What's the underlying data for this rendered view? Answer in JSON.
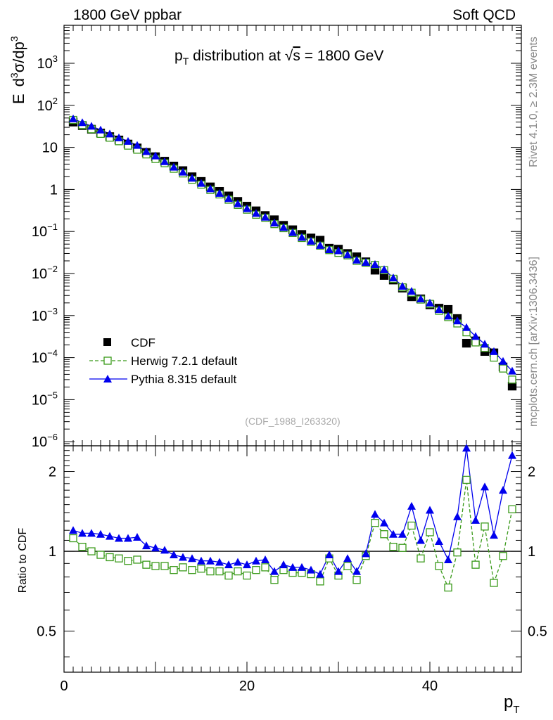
{
  "header": {
    "left": "1800 GeV ppbar",
    "right": "Soft QCD"
  },
  "side_labels": {
    "top": "Rivet 4.1.0, ≥ 2.3M events",
    "bottom": "mcplots.cern.ch [arXiv:1306.3436]"
  },
  "watermark": "(CDF_1988_I263320)",
  "colors": {
    "cdf": "#000000",
    "herwig": "#3a9a1a",
    "pythia": "#0000ee"
  },
  "chart_data": [
    {
      "type": "scatter",
      "name": "main",
      "title": "p_T distribution at √s = 1800 GeV",
      "title_parts": {
        "p": "p",
        "T": "T",
        "rest": " distribution at ",
        "sqrt": "√",
        "s": "s",
        "eq": " = 1800 GeV"
      },
      "ylabel": "E d³σ/dp³",
      "ylabel_parts": {
        "E": "E",
        "d": "d",
        "three": "3",
        "sigma": "σ/dp",
        "three2": "3"
      },
      "yscale": "log",
      "ylim": [
        8e-07,
        8000
      ],
      "xlim": [
        0,
        50
      ],
      "yticks": [
        {
          "v": 1000,
          "b": "10",
          "e": "3"
        },
        {
          "v": 100,
          "b": "10",
          "e": "2"
        },
        {
          "v": 10,
          "b": "10",
          "e": ""
        },
        {
          "v": 1,
          "b": "1",
          "e": ""
        },
        {
          "v": 0.1,
          "b": "10",
          "e": "−1"
        },
        {
          "v": 0.01,
          "b": "10",
          "e": "−2"
        },
        {
          "v": 0.001,
          "b": "10",
          "e": "−3"
        },
        {
          "v": 0.0001,
          "b": "10",
          "e": "−4"
        },
        {
          "v": 1e-05,
          "b": "10",
          "e": "−5"
        },
        {
          "v": 1e-06,
          "b": "10",
          "e": "−6"
        }
      ],
      "legend": {
        "position": "bottom-left",
        "entries": [
          {
            "key": "cdf",
            "label": "CDF"
          },
          {
            "key": "herwig",
            "label": "Herwig 7.2.1 default"
          },
          {
            "key": "pythia",
            "label": "Pythia 8.315 default"
          }
        ]
      },
      "x": [
        1,
        2,
        3,
        4,
        5,
        6,
        7,
        8,
        9,
        10,
        11,
        12,
        13,
        14,
        15,
        16,
        17,
        18,
        19,
        20,
        21,
        22,
        23,
        24,
        25,
        26,
        27,
        28,
        29,
        30,
        31,
        32,
        33,
        34,
        35,
        36,
        37,
        38,
        39,
        40,
        41,
        42,
        43,
        44,
        45,
        46,
        47,
        48,
        49
      ],
      "series": [
        {
          "name": "CDF",
          "key": "cdf",
          "values": [
            40,
            33,
            27,
            22,
            18,
            15,
            12,
            9.7,
            7.6,
            6.0,
            4.7,
            3.6,
            2.8,
            2.0,
            1.55,
            1.15,
            0.9,
            0.7,
            0.52,
            0.4,
            0.31,
            0.24,
            0.19,
            0.14,
            0.11,
            0.085,
            0.07,
            0.062,
            0.04,
            0.038,
            0.03,
            0.025,
            0.019,
            0.012,
            0.009,
            0.007,
            0.0045,
            0.0028,
            0.0025,
            0.0018,
            0.0015,
            0.0014,
            0.00085,
            0.00022,
            0.00025,
            0.00014,
            0.00013,
            6e-05,
            2.1e-05
          ]
        },
        {
          "name": "Herwig 7.2.1 default",
          "key": "herwig",
          "values": [
            45,
            34,
            27,
            21,
            17,
            14,
            11,
            8.8,
            6.8,
            5.3,
            4.2,
            3.1,
            2.4,
            1.7,
            1.3,
            0.97,
            0.76,
            0.57,
            0.43,
            0.33,
            0.25,
            0.21,
            0.15,
            0.12,
            0.092,
            0.07,
            0.057,
            0.046,
            0.036,
            0.031,
            0.027,
            0.02,
            0.018,
            0.016,
            0.012,
            0.0075,
            0.0047,
            0.0035,
            0.0024,
            0.0019,
            0.0013,
            0.00092,
            0.00065,
            0.0004,
            0.00023,
            0.00017,
            0.0001,
            5.5e-05,
            3e-05
          ]
        },
        {
          "name": "Pythia 8.315 default",
          "key": "pythia",
          "values": [
            48,
            39,
            32,
            26,
            21,
            17,
            14,
            11.2,
            8.0,
            6.3,
            4.6,
            3.4,
            2.6,
            1.85,
            1.4,
            1.04,
            0.81,
            0.61,
            0.46,
            0.35,
            0.27,
            0.22,
            0.16,
            0.125,
            0.095,
            0.073,
            0.059,
            0.047,
            0.037,
            0.035,
            0.028,
            0.021,
            0.0185,
            0.0165,
            0.0125,
            0.0079,
            0.005,
            0.0038,
            0.0025,
            0.002,
            0.0014,
            0.00098,
            0.00075,
            0.00052,
            0.00032,
            0.00021,
            0.00014,
            8.2e-05,
            4.8e-05
          ]
        }
      ]
    },
    {
      "type": "scatter",
      "name": "ratio",
      "ylabel": "Ratio to CDF",
      "xlabel": "p_T",
      "xlabel_parts": {
        "p": "p",
        "T": "T"
      },
      "yscale": "log",
      "ylim": [
        0.35,
        2.5
      ],
      "xlim": [
        0,
        50
      ],
      "reference": 1,
      "yticks": [
        {
          "v": 0.5,
          "label": "0.5"
        },
        {
          "v": 1,
          "label": "1"
        },
        {
          "v": 2,
          "label": "2"
        }
      ],
      "xticks": [
        {
          "v": 0,
          "label": "0"
        },
        {
          "v": 20,
          "label": "20"
        },
        {
          "v": 40,
          "label": "40"
        }
      ],
      "x": [
        1,
        2,
        3,
        4,
        5,
        6,
        7,
        8,
        9,
        10,
        11,
        12,
        13,
        14,
        15,
        16,
        17,
        18,
        19,
        20,
        21,
        22,
        23,
        24,
        25,
        26,
        27,
        28,
        29,
        30,
        31,
        32,
        33,
        34,
        35,
        36,
        37,
        38,
        39,
        40,
        41,
        42,
        43,
        44,
        45,
        46,
        47,
        48,
        49
      ],
      "series": [
        {
          "name": "Herwig 7.2.1 default",
          "key": "herwig",
          "values": [
            1.12,
            1.04,
            1.0,
            0.97,
            0.95,
            0.94,
            0.92,
            0.93,
            0.89,
            0.88,
            0.88,
            0.85,
            0.87,
            0.85,
            0.86,
            0.84,
            0.84,
            0.81,
            0.84,
            0.81,
            0.85,
            0.87,
            0.78,
            0.85,
            0.83,
            0.83,
            0.82,
            0.77,
            0.94,
            0.81,
            0.88,
            0.78,
            0.96,
            1.28,
            1.16,
            1.04,
            1.03,
            1.25,
            0.94,
            1.18,
            0.88,
            0.73,
            0.99,
            1.86,
            0.89,
            1.24,
            0.76,
            0.96,
            1.44
          ]
        },
        {
          "name": "Pythia 8.315 default",
          "key": "pythia",
          "values": [
            1.2,
            1.17,
            1.17,
            1.16,
            1.14,
            1.12,
            1.12,
            1.13,
            1.05,
            1.03,
            1.01,
            0.97,
            0.95,
            0.94,
            0.92,
            0.92,
            0.91,
            0.89,
            0.91,
            0.89,
            0.92,
            0.93,
            0.84,
            0.89,
            0.87,
            0.87,
            0.85,
            0.82,
            0.97,
            0.84,
            0.94,
            0.84,
            0.98,
            1.38,
            1.28,
            1.16,
            1.16,
            1.48,
            1.1,
            1.43,
            1.09,
            0.93,
            1.35,
            2.45,
            1.31,
            1.75,
            1.15,
            1.7,
            2.3
          ]
        }
      ]
    }
  ]
}
